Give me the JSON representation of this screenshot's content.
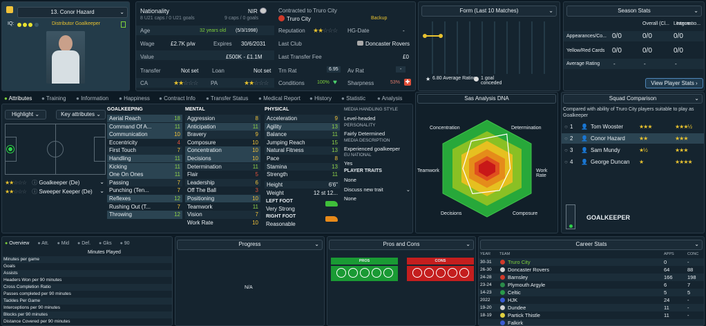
{
  "profile": {
    "name": "13. Conor Hazard",
    "iq_label": "IQ:",
    "roles": "Distributor Goalkeeper"
  },
  "bio": {
    "nationality_label": "Nationality",
    "nationality_sub": "8 U21 caps / 0 U21 goals",
    "nation": "NIR",
    "nation_caps": "9 caps / 0 goals",
    "contracted_label": "Contracted to Truro City",
    "club": "Truro City",
    "club_status": "Backup",
    "age_label": "Age",
    "age_value": "32 years old",
    "dob": "(5/3/1998)",
    "reputation_label": "Reputation",
    "hg_label": "HG-Date",
    "hg_value": "-",
    "wage_label": "Wage",
    "wage_value": "£2.7K p/w",
    "expires_label": "Expires",
    "expires_value": "30/6/2031",
    "lastclub_label": "Last Club",
    "lastclub_value": "Doncaster Rovers",
    "value_label": "Value",
    "value_value": "£500K - £1.1M",
    "fee_label": "Last Transfer Fee",
    "fee_value": "£0",
    "transfer_label": "Transfer",
    "transfer_value": "Not set",
    "loan_label": "Loan",
    "loan_value": "Not set",
    "trnrat_label": "Trn Rat",
    "trnrat_value": "6.95",
    "avrat_label": "Av Rat",
    "avrat_value": "-",
    "ca_label": "CA",
    "pa_label": "PA",
    "conditions_label": "Conditions",
    "conditions_value": "100%",
    "sharpness_label": "Sharpness",
    "sharpness_value": "53%"
  },
  "form": {
    "title": "Form (Last 10 Matches)",
    "avg_value": "6.80",
    "avg_label": "Average Rating",
    "goals_value": "1 goal",
    "goals_label": "conceded"
  },
  "season": {
    "title": "Season Stats",
    "cols": [
      "Overall (Cl...",
      "League",
      "Internatio..."
    ],
    "rows": [
      {
        "label": "Appearances/Co...",
        "vals": [
          "0/0",
          "0/0",
          "0/0"
        ]
      },
      {
        "label": "Yellow/Red Cards",
        "vals": [
          "0/0",
          "0/0",
          "0/0"
        ]
      },
      {
        "label": "Average Rating",
        "vals": [
          "-",
          "-",
          "-"
        ]
      }
    ],
    "button": "View Player Stats"
  },
  "tabs": [
    "Attributes",
    "Training",
    "Information",
    "Happiness",
    "Contract Info",
    "Transfer Status",
    "Medical Report",
    "History",
    "Statistic",
    "Analysis"
  ],
  "attr_panel": {
    "highlight": "Highlight",
    "key_attrs": "Key attributes",
    "pos1": "Goalkeeper (De)",
    "pos2": "Sweeper Keeper (De)"
  },
  "goalkeeping": {
    "title": "GOALKEEPING",
    "items": [
      {
        "n": "Aerial Reach",
        "v": "18"
      },
      {
        "n": "Command Of A...",
        "v": "11"
      },
      {
        "n": "Communication",
        "v": "10"
      },
      {
        "n": "Eccentricity",
        "v": "4"
      },
      {
        "n": "First Touch",
        "v": "7"
      },
      {
        "n": "Handling",
        "v": "11"
      },
      {
        "n": "Kicking",
        "v": "11"
      },
      {
        "n": "One On Ones",
        "v": "11"
      },
      {
        "n": "Passing",
        "v": "7"
      },
      {
        "n": "Punching (Ten...",
        "v": "7"
      },
      {
        "n": "Reflexes",
        "v": "12"
      },
      {
        "n": "Rushing Out (T...",
        "v": "7"
      },
      {
        "n": "Throwing",
        "v": "12"
      }
    ]
  },
  "mental": {
    "title": "MENTAL",
    "items": [
      {
        "n": "Aggression",
        "v": "8"
      },
      {
        "n": "Anticipation",
        "v": "11"
      },
      {
        "n": "Bravery",
        "v": "9"
      },
      {
        "n": "Composure",
        "v": "10"
      },
      {
        "n": "Concentration",
        "v": "10"
      },
      {
        "n": "Decisions",
        "v": "10"
      },
      {
        "n": "Determination",
        "v": "11"
      },
      {
        "n": "Flair",
        "v": "5"
      },
      {
        "n": "Leadership",
        "v": "6"
      },
      {
        "n": "Off The Ball",
        "v": "3"
      },
      {
        "n": "Positioning",
        "v": "10"
      },
      {
        "n": "Teamwork",
        "v": "11"
      },
      {
        "n": "Vision",
        "v": "7"
      },
      {
        "n": "Work Rate",
        "v": "10"
      }
    ]
  },
  "physical": {
    "title": "PHYSICAL",
    "items": [
      {
        "n": "Acceleration",
        "v": "9"
      },
      {
        "n": "Agility",
        "v": "13"
      },
      {
        "n": "Balance",
        "v": "11"
      },
      {
        "n": "Jumping Reach",
        "v": "15"
      },
      {
        "n": "Natural Fitness",
        "v": "13"
      },
      {
        "n": "Pace",
        "v": "8"
      },
      {
        "n": "Stamina",
        "v": "13"
      },
      {
        "n": "Strength",
        "v": "11"
      }
    ],
    "height_label": "Height",
    "height_value": "6'6\"",
    "weight_label": "Weight",
    "weight_value": "12 st 12...",
    "leftfoot_label": "LEFT FOOT",
    "leftfoot_value": "Very Strong",
    "rightfoot_label": "RIGHT FOOT",
    "rightfoot_value": "Reasonable"
  },
  "media": {
    "style_title": "MEDIA HANDLING STYLE",
    "style": "Level-headed",
    "personality_title": "PERSONALITY",
    "personality": "Fairly Determined",
    "desc_title": "MEDIA DESCRIPTION",
    "desc": "Experienced goalkeeper",
    "eu_title": "EU NATIONAL",
    "eu": "Yes",
    "traits_title": "PLAYER TRAITS",
    "traits": "None",
    "discuss": "Discuss new trait",
    "discuss_value": "None"
  },
  "dna": {
    "title": "Sas Analysis DNA",
    "labels": [
      "Concentration",
      "Determination",
      "Work Rate",
      "Composure",
      "Decisions",
      "Teamwork"
    ],
    "values": [
      0.65,
      0.82,
      0.48,
      0.52,
      0.6,
      0.5
    ]
  },
  "squad": {
    "title": "Squad Comparison",
    "desc": "Compared with ability of Truro City players suitable to play as Goalkeeper",
    "players": [
      {
        "rank": "1",
        "name": "Tom Wooster"
      },
      {
        "rank": "2",
        "name": "Conor Hazard"
      },
      {
        "rank": "3",
        "name": "Sam Mundy"
      },
      {
        "rank": "4",
        "name": "George Duncan"
      }
    ],
    "position": "GOALKEEPER"
  },
  "overview": {
    "tabs": [
      "Overview",
      "Att.",
      "Mid",
      "Def.",
      "Gks",
      "90"
    ],
    "minutes": "Minutes Played",
    "stats": [
      "Minutes per game",
      "Goals",
      "Assists",
      "Headers Won per 90 minutes",
      "Cross Completion Ratio",
      "Passes completed per 90 minutes",
      "Tackles Per Game",
      "Interceptions per 90 minutes",
      "Blocks per 90 minutes",
      "Distance Covered per 90 minutes"
    ]
  },
  "progress": {
    "title": "Progress",
    "na": "N/A"
  },
  "proscons": {
    "title": "Pros and Cons",
    "pros": "PROS",
    "cons": "CONS"
  },
  "career": {
    "title": "Career Stats",
    "headers": [
      "YEAR",
      "TEAM",
      "APPS",
      "CONC"
    ],
    "rows": [
      {
        "y": "30-31",
        "t": "Truro City",
        "a": "0",
        "c": "-"
      },
      {
        "y": "26-30",
        "t": "Doncaster Rovers",
        "a": "64",
        "c": "88"
      },
      {
        "y": "24-28",
        "t": "Barnsley",
        "a": "166",
        "c": "198"
      },
      {
        "y": "23-24",
        "t": "Plymouth Argyle",
        "a": "6",
        "c": "7"
      },
      {
        "y": "14-23",
        "t": "Celtic",
        "a": "5",
        "c": "5"
      },
      {
        "y": "2022",
        "t": "HJK",
        "a": "24",
        "c": "-"
      },
      {
        "y": "19-20",
        "t": "Dundee",
        "a": "11",
        "c": "-"
      },
      {
        "y": "18-19",
        "t": "Partick Thistle",
        "a": "11",
        "c": "-"
      },
      {
        "y": "",
        "t": "Falkirk",
        "a": "",
        "c": ""
      }
    ]
  }
}
